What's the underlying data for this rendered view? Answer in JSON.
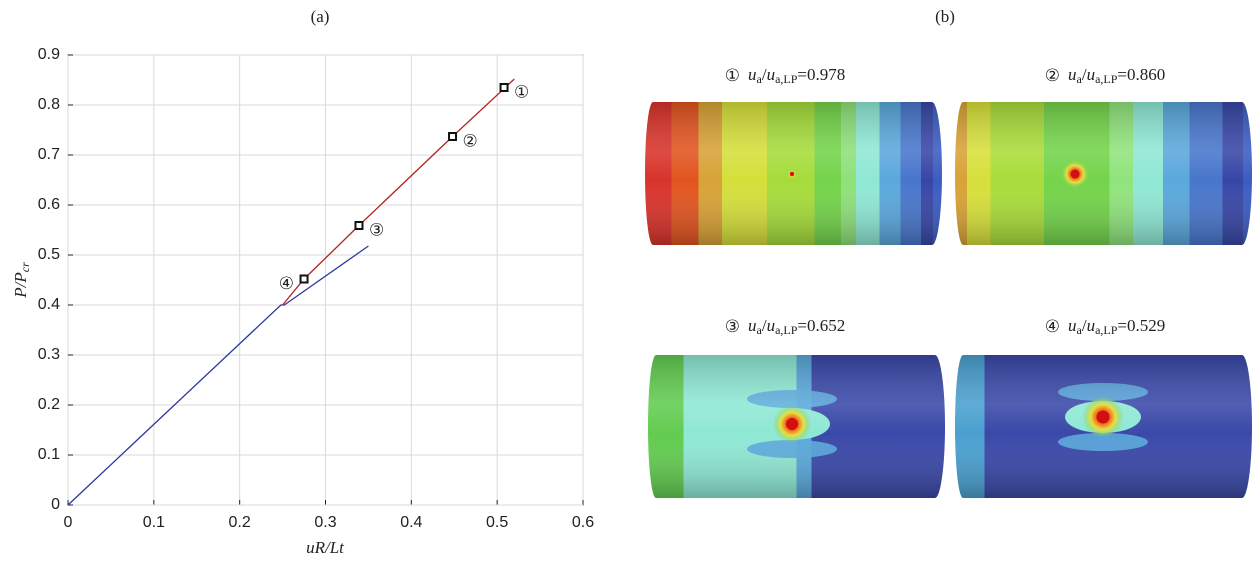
{
  "chart_data": {
    "type": "line",
    "title": "(a)",
    "xlabel": "uR/Lt",
    "ylabel": {
      "main": "P/P",
      "sub": "cr"
    },
    "xlim": [
      0,
      0.6
    ],
    "ylim": [
      0,
      0.9
    ],
    "xticks": [
      0,
      0.1,
      0.2,
      0.3,
      0.4,
      0.5,
      0.6
    ],
    "yticks": [
      0,
      0.1,
      0.2,
      0.3,
      0.4,
      0.5,
      0.6,
      0.7,
      0.8,
      0.9
    ],
    "grid": true,
    "series": [
      {
        "color": "#2b3a9a",
        "x": [
          0,
          0.248,
          0.252,
          0.35
        ],
        "values": [
          0,
          0.4,
          0.4,
          0.518
        ]
      },
      {
        "color": "#b22222",
        "x": [
          0.25,
          0.275,
          0.339,
          0.448,
          0.52
        ],
        "values": [
          0.4,
          0.452,
          0.559,
          0.737,
          0.852
        ]
      }
    ],
    "markers": {
      "x": [
        0.508,
        0.448,
        0.339,
        0.275
      ],
      "values": [
        0.835,
        0.737,
        0.559,
        0.452
      ],
      "labels": [
        "①",
        "②",
        "③",
        "④"
      ]
    }
  },
  "panel_b": {
    "title": "(b)",
    "slash": "/",
    "equals": "=",
    "captions": [
      {
        "marker": "①",
        "num": "u",
        "num_sub": "a",
        "den": "u",
        "den_sub": "a,LP",
        "value": "0.978"
      },
      {
        "marker": "②",
        "num": "u",
        "num_sub": "a",
        "den": "u",
        "den_sub": "a,LP",
        "value": "0.860"
      },
      {
        "marker": "③",
        "num": "u",
        "num_sub": "a",
        "den": "u",
        "den_sub": "a,LP",
        "value": "0.652"
      },
      {
        "marker": "④",
        "num": "u",
        "num_sub": "a",
        "den": "u",
        "den_sub": "a,LP",
        "value": "0.529"
      }
    ]
  }
}
